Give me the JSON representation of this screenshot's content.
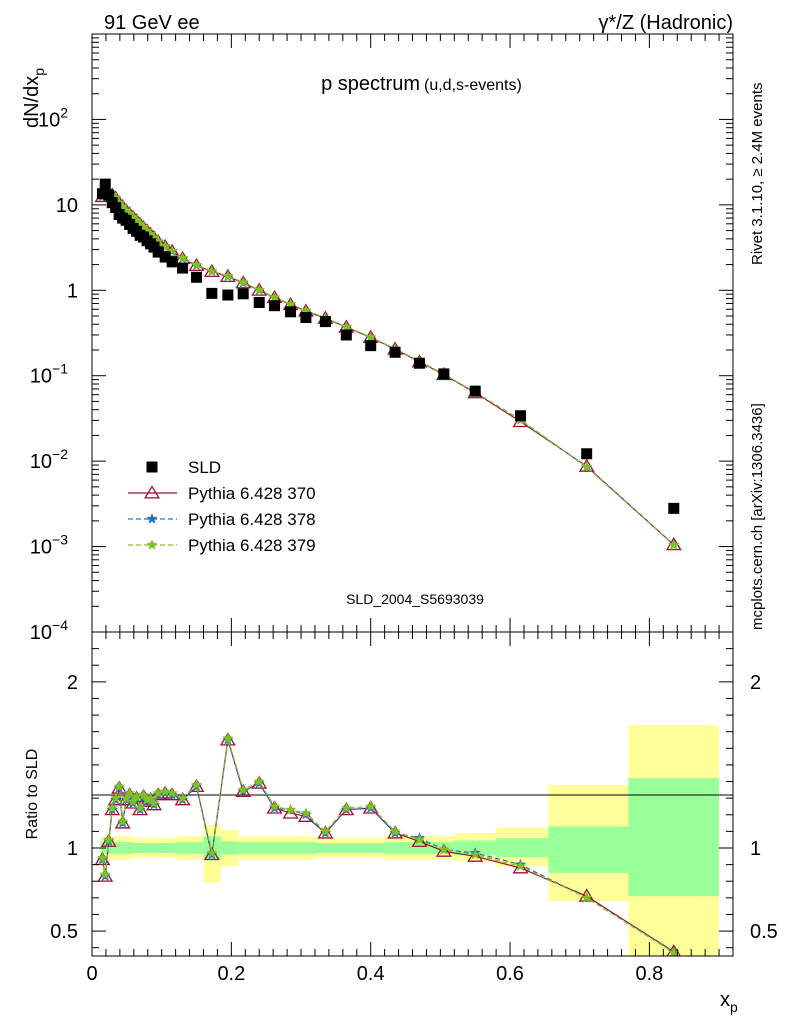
{
  "header": {
    "left_title": "91 GeV ee",
    "right_title": "γ*/Z (Hadronic)"
  },
  "side_labels": {
    "rivet": "Rivet 3.1.10, ≥ 2.4M events",
    "mcplots": "mcplots.cern.ch [arXiv:1306.3436]"
  },
  "chart_data": {
    "type": "line",
    "title": "p spectrum",
    "subtitle": "(u,d,s-events)",
    "watermark": "SLD_2004_S5693039",
    "xlabel": "x",
    "xlabel_sub": "p",
    "ylabel": "dN/dx",
    "ylabel_sub": "p",
    "ratio_ylabel": "Ratio to SLD",
    "xlim": [
      0,
      0.92
    ],
    "ylim_log": [
      0.0001,
      1000
    ],
    "ratio_ylim": [
      0.35,
      2.3
    ],
    "x_ticks": [
      "0",
      "0.2",
      "0.4",
      "0.6",
      "0.8"
    ],
    "x_tick_values": [
      0,
      0.2,
      0.4,
      0.6,
      0.8
    ],
    "y_ticks": [
      {
        "value": 100,
        "base": "10",
        "exp": "2"
      },
      {
        "value": 10,
        "base": "10",
        "exp": ""
      },
      {
        "value": 1,
        "base": "1",
        "exp": ""
      },
      {
        "value": 0.1,
        "base": "10",
        "exp": "−1"
      },
      {
        "value": 0.01,
        "base": "10",
        "exp": "−2"
      },
      {
        "value": 0.001,
        "base": "10",
        "exp": "−3"
      },
      {
        "value": 0.0001,
        "base": "10",
        "exp": "−4"
      }
    ],
    "ratio_ticks": [
      {
        "value": 2,
        "label": "2"
      },
      {
        "value": 1,
        "label": "1"
      },
      {
        "value": 0.5,
        "label": "0.5"
      }
    ],
    "x": [
      0.015,
      0.019,
      0.024,
      0.029,
      0.034,
      0.039,
      0.044,
      0.049,
      0.054,
      0.059,
      0.064,
      0.069,
      0.074,
      0.079,
      0.084,
      0.089,
      0.095,
      0.105,
      0.115,
      0.13,
      0.15,
      0.172,
      0.195,
      0.217,
      0.24,
      0.262,
      0.285,
      0.307,
      0.335,
      0.365,
      0.4,
      0.435,
      0.47,
      0.505,
      0.55,
      0.615,
      0.71,
      0.835
    ],
    "series": [
      {
        "name": "SLD",
        "style": "square",
        "color": "#000000",
        "values": [
          13.5,
          17.5,
          13.0,
          10.6,
          9.3,
          7.7,
          7.0,
          6.6,
          5.9,
          5.3,
          4.9,
          4.4,
          4.2,
          3.8,
          3.5,
          3.2,
          2.8,
          2.45,
          2.15,
          1.82,
          1.42,
          0.92,
          0.88,
          0.91,
          0.72,
          0.66,
          0.56,
          0.48,
          0.43,
          0.3,
          0.225,
          0.188,
          0.14,
          0.105,
          0.066,
          0.034,
          0.0122,
          0.0028
        ]
      },
      {
        "name": "Pythia 6.428 370",
        "style": "triangle",
        "color": "#a01030",
        "values": [
          12.5,
          14.5,
          13.5,
          13.0,
          12.0,
          10.5,
          9.5,
          8.5,
          7.8,
          7.1,
          6.5,
          5.9,
          5.4,
          4.95,
          4.5,
          4.1,
          3.7,
          3.25,
          2.85,
          2.35,
          1.95,
          1.66,
          1.45,
          1.22,
          1.0,
          0.82,
          0.68,
          0.57,
          0.47,
          0.37,
          0.28,
          0.205,
          0.145,
          0.103,
          0.063,
          0.029,
          0.0087,
          0.00105
        ]
      },
      {
        "name": "Pythia 6.428 378",
        "style": "star",
        "color": "#2070d0",
        "dash": "5,3",
        "values": [
          12.5,
          14.5,
          13.5,
          13.0,
          12.0,
          10.5,
          9.5,
          8.5,
          7.8,
          7.1,
          6.5,
          5.9,
          5.4,
          4.95,
          4.5,
          4.1,
          3.7,
          3.25,
          2.85,
          2.35,
          1.95,
          1.66,
          1.45,
          1.22,
          1.0,
          0.82,
          0.69,
          0.575,
          0.47,
          0.37,
          0.28,
          0.205,
          0.148,
          0.104,
          0.064,
          0.0305,
          0.0085,
          0.00105
        ]
      },
      {
        "name": "Pythia 6.428 379",
        "style": "star",
        "color": "#80c020",
        "dash": "5,3",
        "values": [
          12.6,
          14.7,
          13.6,
          13.1,
          12.1,
          10.6,
          9.6,
          8.6,
          7.9,
          7.2,
          6.6,
          6.0,
          5.5,
          5.0,
          4.55,
          4.15,
          3.75,
          3.3,
          2.9,
          2.4,
          1.98,
          1.68,
          1.47,
          1.24,
          1.01,
          0.83,
          0.69,
          0.58,
          0.475,
          0.375,
          0.283,
          0.207,
          0.147,
          0.104,
          0.0635,
          0.0302,
          0.0086,
          0.00104
        ]
      }
    ],
    "ratios": [
      {
        "name": "Pythia 6.428 370",
        "values": [
          0.93,
          0.83,
          1.04,
          1.23,
          1.29,
          1.36,
          1.15,
          1.29,
          1.32,
          1.27,
          1.3,
          1.23,
          1.31,
          1.28,
          1.29,
          1.26,
          1.32,
          1.33,
          1.32,
          1.29,
          1.37,
          0.96,
          1.65,
          1.34,
          1.39,
          1.24,
          1.21,
          1.19,
          1.09,
          1.23,
          1.24,
          1.09,
          1.04,
          0.98,
          0.95,
          0.88,
          0.71,
          0.375
        ]
      },
      {
        "name": "Pythia 6.428 378",
        "values": [
          0.93,
          0.83,
          1.04,
          1.23,
          1.29,
          1.36,
          1.15,
          1.29,
          1.32,
          1.27,
          1.3,
          1.23,
          1.31,
          1.28,
          1.29,
          1.26,
          1.32,
          1.33,
          1.32,
          1.29,
          1.37,
          0.96,
          1.65,
          1.34,
          1.39,
          1.24,
          1.23,
          1.2,
          1.09,
          1.23,
          1.24,
          1.09,
          1.06,
          0.99,
          0.97,
          0.9,
          0.7,
          0.375
        ]
      },
      {
        "name": "Pythia 6.428 379",
        "values": [
          0.94,
          0.84,
          1.05,
          1.24,
          1.3,
          1.37,
          1.16,
          1.3,
          1.33,
          1.28,
          1.31,
          1.24,
          1.32,
          1.29,
          1.3,
          1.27,
          1.33,
          1.34,
          1.33,
          1.3,
          1.38,
          0.97,
          1.66,
          1.35,
          1.4,
          1.25,
          1.23,
          1.21,
          1.1,
          1.24,
          1.25,
          1.1,
          1.05,
          0.99,
          0.96,
          0.89,
          0.7,
          0.37
        ]
      }
    ],
    "ratio_bands": [
      {
        "x0": 0.012,
        "x1": 0.06,
        "g": [
          0.965,
          1.035
        ],
        "y": [
          0.93,
          1.07
        ]
      },
      {
        "x0": 0.06,
        "x1": 0.12,
        "g": [
          0.97,
          1.03
        ],
        "y": [
          0.94,
          1.06
        ]
      },
      {
        "x0": 0.12,
        "x1": 0.16,
        "g": [
          0.965,
          1.035
        ],
        "y": [
          0.93,
          1.07
        ]
      },
      {
        "x0": 0.16,
        "x1": 0.185,
        "g": [
          0.93,
          1.07
        ],
        "y": [
          0.79,
          1.14
        ]
      },
      {
        "x0": 0.185,
        "x1": 0.21,
        "g": [
          0.96,
          1.04
        ],
        "y": [
          0.89,
          1.11
        ]
      },
      {
        "x0": 0.21,
        "x1": 0.32,
        "g": [
          0.965,
          1.035
        ],
        "y": [
          0.93,
          1.07
        ]
      },
      {
        "x0": 0.32,
        "x1": 0.42,
        "g": [
          0.97,
          1.03
        ],
        "y": [
          0.94,
          1.06
        ]
      },
      {
        "x0": 0.42,
        "x1": 0.52,
        "g": [
          0.965,
          1.035
        ],
        "y": [
          0.93,
          1.07
        ]
      },
      {
        "x0": 0.52,
        "x1": 0.58,
        "g": [
          0.955,
          1.045
        ],
        "y": [
          0.92,
          1.09
        ]
      },
      {
        "x0": 0.58,
        "x1": 0.655,
        "g": [
          0.945,
          1.06
        ],
        "y": [
          0.89,
          1.12
        ]
      },
      {
        "x0": 0.655,
        "x1": 0.77,
        "g": [
          0.85,
          1.13
        ],
        "y": [
          0.68,
          1.38
        ]
      },
      {
        "x0": 0.77,
        "x1": 0.9,
        "g": [
          0.71,
          1.42
        ],
        "y": [
          0.3,
          1.74
        ]
      }
    ],
    "band_colors": {
      "inner": "#99ff99",
      "outer": "#ffff99"
    }
  }
}
